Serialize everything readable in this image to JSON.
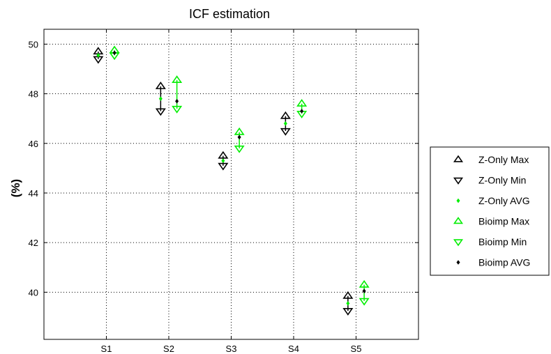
{
  "chart_data": {
    "type": "scatter",
    "title": "ICF estimation",
    "xlabel": "",
    "ylabel": "(%)",
    "categories": [
      "S1",
      "S2",
      "S3",
      "S4",
      "S5"
    ],
    "ylim": [
      38.1,
      50.6
    ],
    "yticks": [
      40,
      42,
      44,
      46,
      48,
      50
    ],
    "grid": true,
    "legend_position": "outside-right",
    "colors": {
      "z_only": "#000000",
      "bioimp": "#00ee00",
      "z_only_avg": "#00ee00",
      "bioimp_avg": "#000000"
    },
    "groups": [
      {
        "name": "Z-Only",
        "offset": -0.13,
        "color": "#000000",
        "max": [
          49.7,
          48.3,
          45.5,
          47.1,
          39.85
        ],
        "min": [
          49.4,
          47.3,
          45.1,
          46.5,
          39.25
        ],
        "avg": [
          49.55,
          47.8,
          45.3,
          46.8,
          39.55
        ]
      },
      {
        "name": "Bioimp",
        "offset": 0.13,
        "color": "#00ee00",
        "max": [
          49.75,
          48.55,
          46.45,
          47.6,
          40.3
        ],
        "min": [
          49.55,
          47.4,
          45.8,
          47.2,
          39.65
        ],
        "avg": [
          49.65,
          47.7,
          46.25,
          47.3,
          40.05
        ]
      }
    ],
    "legend": [
      {
        "label": "Z-Only  Max",
        "marker": "triangle-up",
        "color": "#000000"
      },
      {
        "label": "Z-Only  Min",
        "marker": "triangle-down",
        "color": "#000000"
      },
      {
        "label": "Z-Only  AVG",
        "marker": "diamond",
        "color": "#00ee00"
      },
      {
        "label": "Bioimp  Max",
        "marker": "triangle-up",
        "color": "#00ee00"
      },
      {
        "label": "Bioimp  Min",
        "marker": "triangle-down",
        "color": "#00ee00"
      },
      {
        "label": "Bioimp  AVG",
        "marker": "diamond",
        "color": "#000000"
      }
    ]
  }
}
